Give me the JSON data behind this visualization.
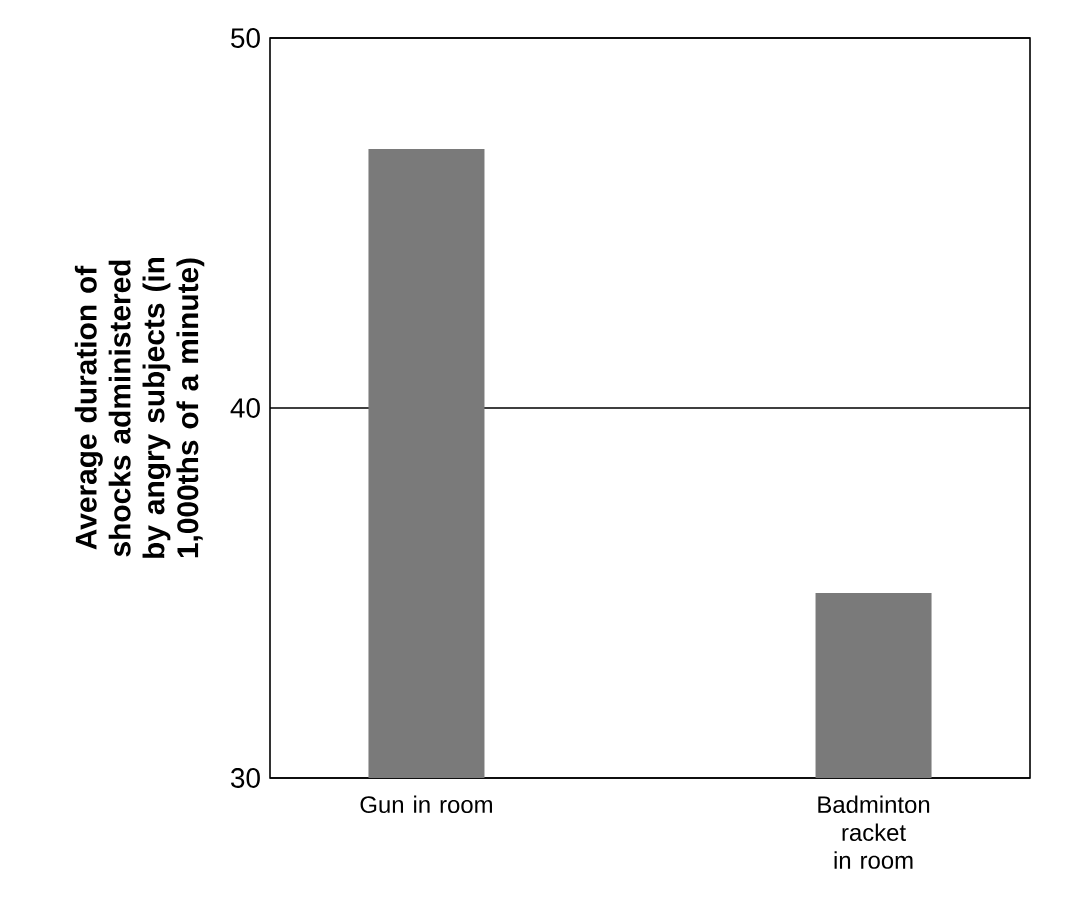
{
  "chart_data": {
    "type": "bar",
    "ylabel": "Average duration of shocks administered by angry subjects (in 1,000ths of a minute)",
    "categories": [
      "Gun in room",
      "Badminton racket in room"
    ],
    "values": [
      47,
      35
    ],
    "color": "#7a7a7a",
    "ylim": [
      30,
      50
    ],
    "yticks": [
      30,
      40,
      50
    ],
    "grid": "y"
  }
}
